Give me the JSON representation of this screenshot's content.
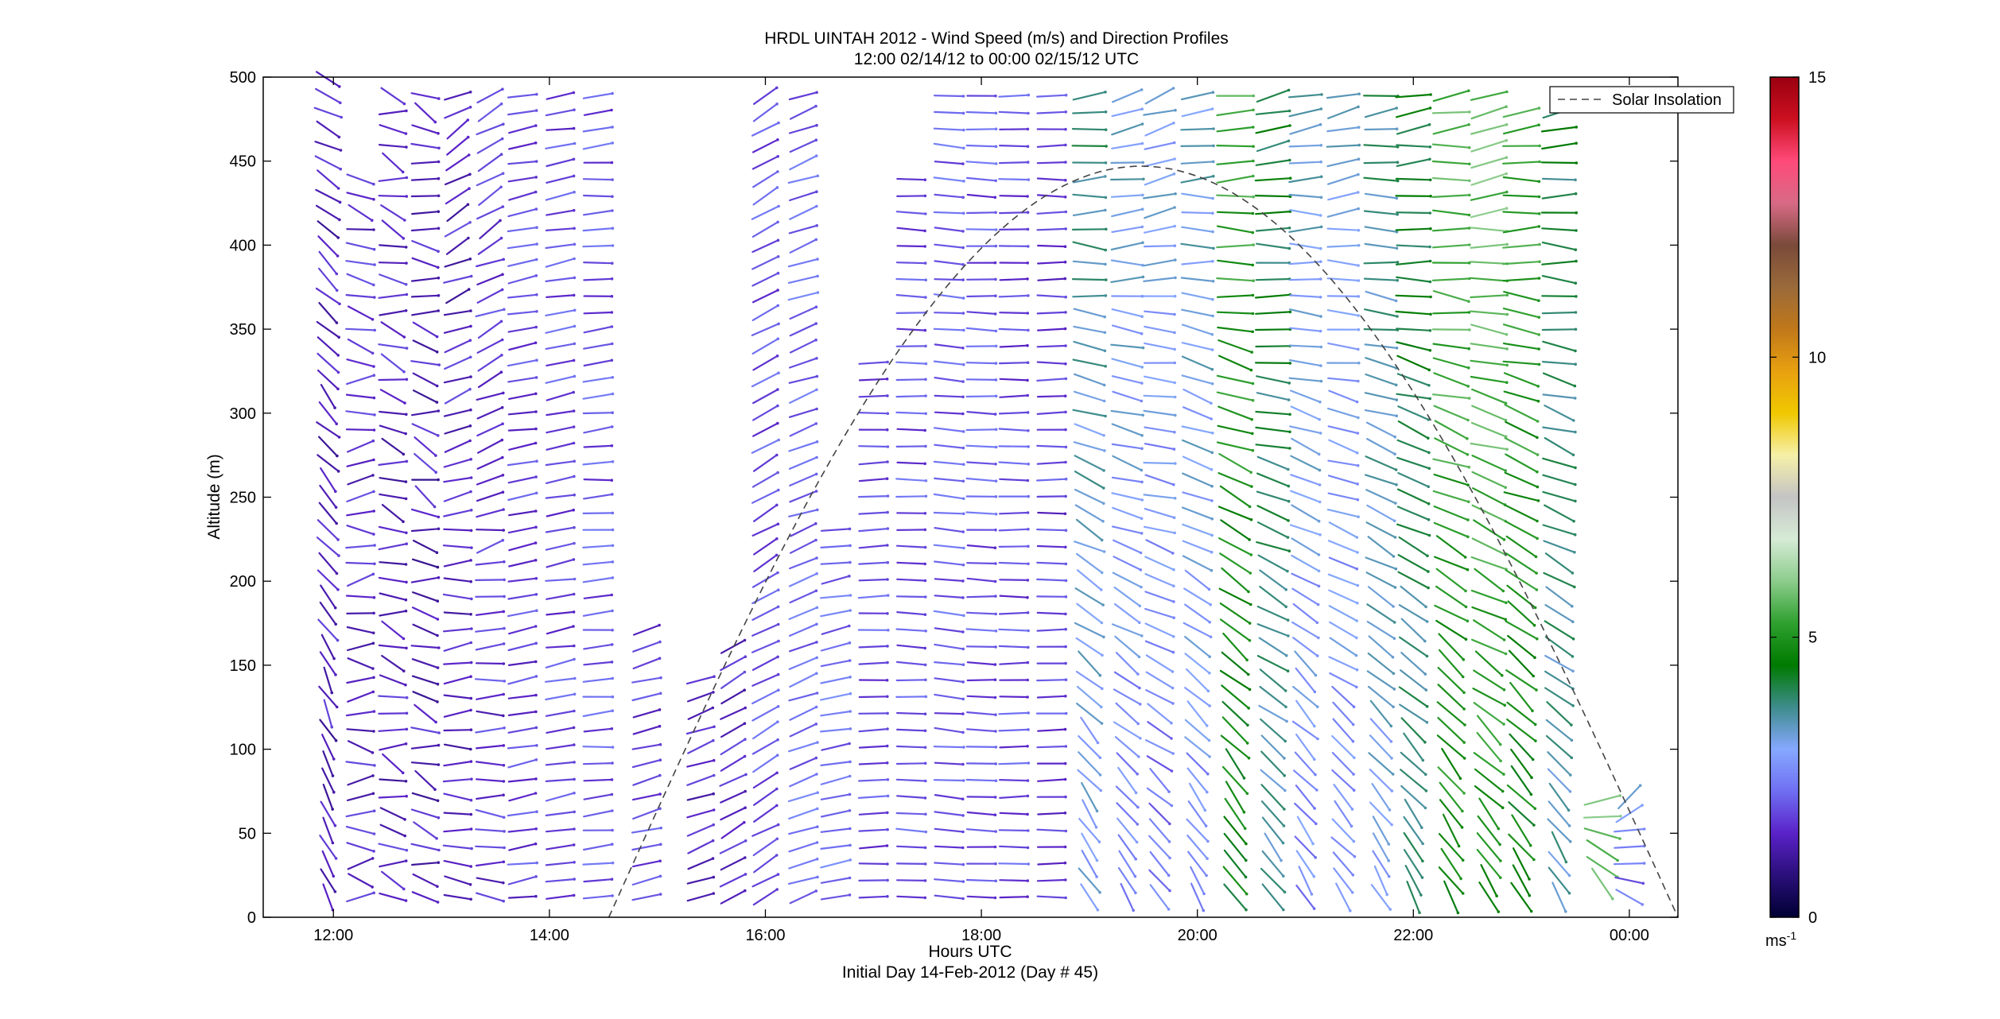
{
  "chart_data": {
    "type": "wind-barb profile",
    "title": "HRDL UINTAH 2012 - Wind Speed (m/s) and Direction Profiles",
    "subtitle": "12:00 02/14/12 to 00:00 02/15/12  UTC",
    "xlabel": "Hours UTC",
    "xlabel2": "Initial Day 14-Feb-2012 (Day # 45)",
    "ylabel": "Altitude (m)",
    "xlim": [
      11.35,
      24.45
    ],
    "ylim": [
      0,
      500
    ],
    "x_ticks": [
      12,
      14,
      16,
      18,
      20,
      22,
      24
    ],
    "x_tick_labels": [
      "12:00",
      "14:00",
      "16:00",
      "18:00",
      "20:00",
      "22:00",
      "00:00"
    ],
    "y_ticks": [
      0,
      50,
      100,
      150,
      200,
      250,
      300,
      350,
      400,
      450,
      500
    ],
    "y_tick_labels": [
      "0",
      "50",
      "100",
      "150",
      "200",
      "250",
      "300",
      "350",
      "400",
      "450",
      "500"
    ],
    "legend": {
      "entries": [
        "Solar Insolation"
      ],
      "placement": "top-right"
    },
    "colorbar": {
      "min": 0,
      "max": 15,
      "ticks": [
        0,
        5,
        10,
        15
      ],
      "tick_labels": [
        "0",
        "5",
        "10",
        "15"
      ],
      "unit_label": "ms",
      "unit_exp": "-1",
      "colors": [
        "#000033",
        "#2a0f7a",
        "#5a22c8",
        "#6f6ff2",
        "#86a8ff",
        "#3e8c8c",
        "#007a00",
        "#2ea02e",
        "#8ccc8c",
        "#d6ebd6",
        "#c4c4c4",
        "#f6f0a8",
        "#f0c800",
        "#e8a010",
        "#c0781a",
        "#9a6a3a",
        "#7a4a3a",
        "#d86a86",
        "#ff4a7a",
        "#cc1020",
        "#9a0010"
      ]
    },
    "solar_insolation": {
      "style": "dashed",
      "start_hour": 14.55,
      "end_hour": 24.45,
      "peak_hour": 19.48,
      "peak_altitude": 447
    },
    "wind_columns": [
      {
        "hour": 11.95,
        "alt_min": 12,
        "alt_max": 500,
        "speed": 1.4,
        "dir_deg": 160,
        "style": "low-tilt"
      },
      {
        "hour": 12.25,
        "alt_min": 12,
        "alt_max": 440,
        "speed": 1.6,
        "dir_deg": 95,
        "style": "mixed"
      },
      {
        "hour": 12.55,
        "alt_min": 12,
        "alt_max": 490,
        "speed": 1.5,
        "dir_deg": 105,
        "style": "mixed"
      },
      {
        "hour": 12.85,
        "alt_min": 12,
        "alt_max": 490,
        "speed": 1.4,
        "dir_deg": 110,
        "style": "mixed"
      },
      {
        "hour": 13.15,
        "alt_min": 12,
        "alt_max": 490,
        "speed": 1.5,
        "dir_deg": 100,
        "style": "low-tilt"
      },
      {
        "hour": 13.45,
        "alt_min": 12,
        "alt_max": 490,
        "speed": 1.7,
        "dir_deg": 95,
        "style": "low-tilt"
      },
      {
        "hour": 13.75,
        "alt_min": 12,
        "alt_max": 490,
        "speed": 1.8,
        "dir_deg": 80,
        "style": "rising"
      },
      {
        "hour": 14.1,
        "alt_min": 12,
        "alt_max": 490,
        "speed": 1.9,
        "dir_deg": 80,
        "style": "rising"
      },
      {
        "hour": 14.45,
        "alt_min": 12,
        "alt_max": 490,
        "speed": 2.0,
        "dir_deg": 85,
        "style": "rising"
      },
      {
        "hour": 14.9,
        "alt_min": 12,
        "alt_max": 180,
        "speed": 1.8,
        "dir_deg": 75,
        "style": "rising"
      },
      {
        "hour": 15.4,
        "alt_min": 12,
        "alt_max": 150,
        "speed": 1.5,
        "dir_deg": 70,
        "style": "rising"
      },
      {
        "hour": 15.7,
        "alt_min": 12,
        "alt_max": 170,
        "speed": 1.6,
        "dir_deg": 60,
        "style": "rising"
      },
      {
        "hour": 16.0,
        "alt_min": 12,
        "alt_max": 490,
        "speed": 2.0,
        "dir_deg": 60,
        "style": "rising"
      },
      {
        "hour": 16.35,
        "alt_min": 12,
        "alt_max": 490,
        "speed": 2.2,
        "dir_deg": 70,
        "style": "rising"
      },
      {
        "hour": 16.65,
        "alt_min": 12,
        "alt_max": 240,
        "speed": 2.3,
        "dir_deg": 80,
        "style": "rising"
      },
      {
        "hour": 17.0,
        "alt_min": 12,
        "alt_max": 330,
        "speed": 1.9,
        "dir_deg": 88,
        "style": "flat"
      },
      {
        "hour": 17.35,
        "alt_min": 12,
        "alt_max": 440,
        "speed": 2.0,
        "dir_deg": 92,
        "style": "flat"
      },
      {
        "hour": 17.7,
        "alt_min": 12,
        "alt_max": 495,
        "speed": 2.1,
        "dir_deg": 95,
        "style": "flat"
      },
      {
        "hour": 18.0,
        "alt_min": 12,
        "alt_max": 490,
        "speed": 2.0,
        "dir_deg": 92,
        "style": "flat"
      },
      {
        "hour": 18.3,
        "alt_min": 12,
        "alt_max": 490,
        "speed": 1.9,
        "dir_deg": 90,
        "style": "flat"
      },
      {
        "hour": 18.65,
        "alt_min": 12,
        "alt_max": 490,
        "speed": 1.8,
        "dir_deg": 90,
        "style": "flat"
      },
      {
        "hour": 19.0,
        "alt_min": 12,
        "alt_max": 490,
        "speed": 3.0,
        "dir_deg": 150,
        "style": "high-tilt"
      },
      {
        "hour": 19.35,
        "alt_min": 12,
        "alt_max": 490,
        "speed": 2.5,
        "dir_deg": 145,
        "style": "high-tilt"
      },
      {
        "hour": 19.65,
        "alt_min": 12,
        "alt_max": 490,
        "speed": 2.3,
        "dir_deg": 140,
        "style": "high-tilt"
      },
      {
        "hour": 20.0,
        "alt_min": 12,
        "alt_max": 490,
        "speed": 2.6,
        "dir_deg": 150,
        "style": "high-tilt"
      },
      {
        "hour": 20.35,
        "alt_min": 12,
        "alt_max": 490,
        "speed": 4.5,
        "dir_deg": 150,
        "style": "high-tilt"
      },
      {
        "hour": 20.7,
        "alt_min": 12,
        "alt_max": 490,
        "speed": 3.5,
        "dir_deg": 145,
        "style": "high-tilt"
      },
      {
        "hour": 21.0,
        "alt_min": 12,
        "alt_max": 490,
        "speed": 2.6,
        "dir_deg": 150,
        "style": "high-tilt"
      },
      {
        "hour": 21.35,
        "alt_min": 12,
        "alt_max": 490,
        "speed": 2.5,
        "dir_deg": 145,
        "style": "high-tilt"
      },
      {
        "hour": 21.7,
        "alt_min": 12,
        "alt_max": 490,
        "speed": 3.0,
        "dir_deg": 150,
        "style": "high-tilt"
      },
      {
        "hour": 22.0,
        "alt_min": 12,
        "alt_max": 490,
        "speed": 3.6,
        "dir_deg": 150,
        "style": "high-tilt"
      },
      {
        "hour": 22.35,
        "alt_min": 12,
        "alt_max": 490,
        "speed": 4.8,
        "dir_deg": 150,
        "style": "high-tilt"
      },
      {
        "hour": 22.7,
        "alt_min": 12,
        "alt_max": 490,
        "speed": 5.0,
        "dir_deg": 145,
        "style": "high-tilt"
      },
      {
        "hour": 23.0,
        "alt_min": 12,
        "alt_max": 480,
        "speed": 4.6,
        "dir_deg": 150,
        "style": "high-tilt"
      },
      {
        "hour": 23.35,
        "alt_min": 12,
        "alt_max": 480,
        "speed": 3.4,
        "dir_deg": 150,
        "style": "high-tilt"
      },
      {
        "hour": 23.75,
        "alt_min": 20,
        "alt_max": 75,
        "speed": 5.4,
        "dir_deg": 140,
        "style": "high-tilt"
      },
      {
        "hour": 24.0,
        "alt_min": 12,
        "alt_max": 75,
        "speed": 2.2,
        "dir_deg": 120,
        "style": "high-tilt"
      }
    ]
  }
}
